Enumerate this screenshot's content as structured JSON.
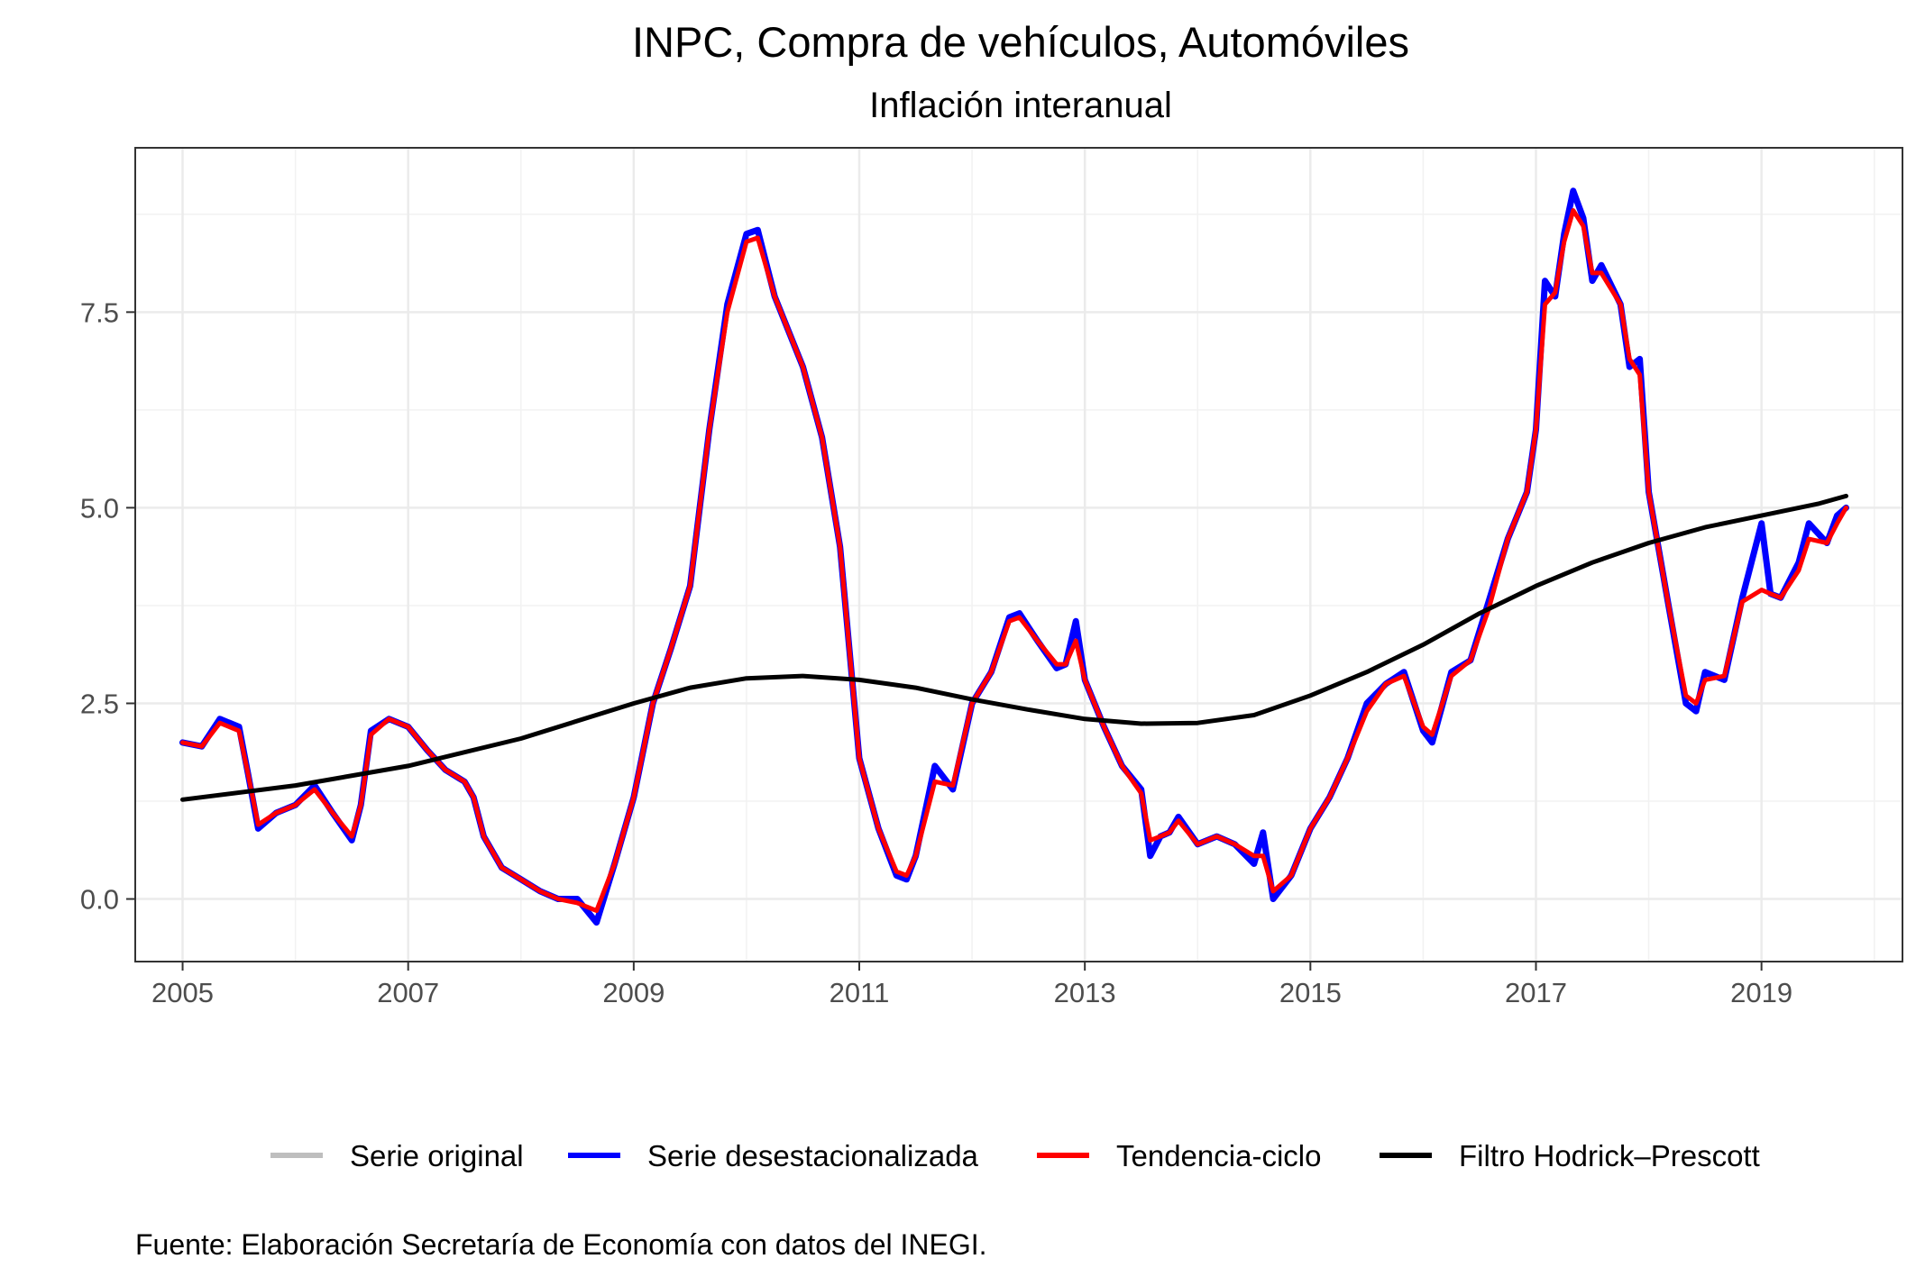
{
  "chart_data": {
    "type": "line",
    "title": "INPC, Compra de vehículos, Automóviles",
    "subtitle": "Inflación interanual",
    "caption": "Fuente: Elaboración Secretaría de Economía con datos del INEGI.",
    "xlabel": "",
    "ylabel": "",
    "xlim": [
      2004.58,
      2020.25
    ],
    "ylim": [
      -0.8,
      9.6
    ],
    "x_ticks": [
      2005,
      2007,
      2009,
      2011,
      2013,
      2015,
      2017,
      2019
    ],
    "x_tick_labels": [
      "2005",
      "2007",
      "2009",
      "2011",
      "2013",
      "2015",
      "2017",
      "2019"
    ],
    "y_ticks": [
      0,
      2.5,
      5,
      7.5
    ],
    "y_tick_labels": [
      "0.0",
      "2.5",
      "5.0",
      "7.5"
    ],
    "grid": true,
    "legend_position": "bottom",
    "series": [
      {
        "name": "Serie original",
        "color": "#bebebe",
        "points": []
      },
      {
        "name": "Serie desestacionalizada",
        "color": "#0000ff",
        "points": [
          [
            2005.0,
            2.0
          ],
          [
            2005.17,
            1.95
          ],
          [
            2005.33,
            2.3
          ],
          [
            2005.5,
            2.2
          ],
          [
            2005.58,
            1.6
          ],
          [
            2005.67,
            0.9
          ],
          [
            2005.83,
            1.1
          ],
          [
            2006.0,
            1.2
          ],
          [
            2006.17,
            1.45
          ],
          [
            2006.33,
            1.1
          ],
          [
            2006.5,
            0.75
          ],
          [
            2006.58,
            1.2
          ],
          [
            2006.67,
            2.15
          ],
          [
            2006.83,
            2.3
          ],
          [
            2007.0,
            2.2
          ],
          [
            2007.17,
            1.9
          ],
          [
            2007.33,
            1.65
          ],
          [
            2007.5,
            1.5
          ],
          [
            2007.58,
            1.3
          ],
          [
            2007.67,
            0.8
          ],
          [
            2007.83,
            0.4
          ],
          [
            2008.0,
            0.25
          ],
          [
            2008.17,
            0.1
          ],
          [
            2008.33,
            0.0
          ],
          [
            2008.5,
            0.0
          ],
          [
            2008.67,
            -0.3
          ],
          [
            2008.83,
            0.45
          ],
          [
            2009.0,
            1.3
          ],
          [
            2009.17,
            2.5
          ],
          [
            2009.33,
            3.2
          ],
          [
            2009.5,
            4.0
          ],
          [
            2009.67,
            6.0
          ],
          [
            2009.83,
            7.6
          ],
          [
            2010.0,
            8.5
          ],
          [
            2010.1,
            8.55
          ],
          [
            2010.25,
            7.7
          ],
          [
            2010.5,
            6.8
          ],
          [
            2010.67,
            5.9
          ],
          [
            2010.83,
            4.5
          ],
          [
            2011.0,
            1.8
          ],
          [
            2011.17,
            0.9
          ],
          [
            2011.33,
            0.3
          ],
          [
            2011.42,
            0.25
          ],
          [
            2011.5,
            0.55
          ],
          [
            2011.67,
            1.7
          ],
          [
            2011.83,
            1.4
          ],
          [
            2012.0,
            2.5
          ],
          [
            2012.17,
            2.9
          ],
          [
            2012.33,
            3.6
          ],
          [
            2012.42,
            3.65
          ],
          [
            2012.58,
            3.3
          ],
          [
            2012.75,
            2.95
          ],
          [
            2012.83,
            3.0
          ],
          [
            2012.92,
            3.55
          ],
          [
            2013.0,
            2.8
          ],
          [
            2013.17,
            2.2
          ],
          [
            2013.33,
            1.7
          ],
          [
            2013.5,
            1.4
          ],
          [
            2013.58,
            0.55
          ],
          [
            2013.67,
            0.8
          ],
          [
            2013.75,
            0.85
          ],
          [
            2013.83,
            1.05
          ],
          [
            2014.0,
            0.7
          ],
          [
            2014.17,
            0.8
          ],
          [
            2014.33,
            0.7
          ],
          [
            2014.5,
            0.45
          ],
          [
            2014.58,
            0.85
          ],
          [
            2014.67,
            0.0
          ],
          [
            2014.83,
            0.3
          ],
          [
            2015.0,
            0.9
          ],
          [
            2015.17,
            1.3
          ],
          [
            2015.33,
            1.8
          ],
          [
            2015.5,
            2.5
          ],
          [
            2015.67,
            2.75
          ],
          [
            2015.83,
            2.9
          ],
          [
            2016.0,
            2.15
          ],
          [
            2016.08,
            2.0
          ],
          [
            2016.25,
            2.9
          ],
          [
            2016.42,
            3.05
          ],
          [
            2016.58,
            3.8
          ],
          [
            2016.75,
            4.6
          ],
          [
            2016.92,
            5.2
          ],
          [
            2017.0,
            6.0
          ],
          [
            2017.08,
            7.9
          ],
          [
            2017.17,
            7.7
          ],
          [
            2017.25,
            8.5
          ],
          [
            2017.33,
            9.05
          ],
          [
            2017.42,
            8.7
          ],
          [
            2017.5,
            7.9
          ],
          [
            2017.58,
            8.1
          ],
          [
            2017.75,
            7.6
          ],
          [
            2017.83,
            6.8
          ],
          [
            2017.92,
            6.9
          ],
          [
            2018.0,
            5.2
          ],
          [
            2018.17,
            3.8
          ],
          [
            2018.33,
            2.5
          ],
          [
            2018.42,
            2.4
          ],
          [
            2018.5,
            2.9
          ],
          [
            2018.67,
            2.8
          ],
          [
            2018.83,
            3.85
          ],
          [
            2019.0,
            4.8
          ],
          [
            2019.08,
            3.9
          ],
          [
            2019.17,
            3.85
          ],
          [
            2019.33,
            4.3
          ],
          [
            2019.42,
            4.8
          ],
          [
            2019.58,
            4.55
          ],
          [
            2019.67,
            4.9
          ],
          [
            2019.75,
            5.0
          ]
        ]
      },
      {
        "name": "Tendencia-ciclo",
        "color": "#ff0000",
        "points": [
          [
            2005.0,
            2.0
          ],
          [
            2005.17,
            1.95
          ],
          [
            2005.33,
            2.25
          ],
          [
            2005.5,
            2.15
          ],
          [
            2005.58,
            1.6
          ],
          [
            2005.67,
            0.95
          ],
          [
            2005.83,
            1.1
          ],
          [
            2006.0,
            1.2
          ],
          [
            2006.17,
            1.4
          ],
          [
            2006.33,
            1.1
          ],
          [
            2006.5,
            0.8
          ],
          [
            2006.58,
            1.2
          ],
          [
            2006.67,
            2.1
          ],
          [
            2006.83,
            2.3
          ],
          [
            2007.0,
            2.2
          ],
          [
            2007.17,
            1.9
          ],
          [
            2007.33,
            1.65
          ],
          [
            2007.5,
            1.5
          ],
          [
            2007.58,
            1.3
          ],
          [
            2007.67,
            0.8
          ],
          [
            2007.83,
            0.4
          ],
          [
            2008.0,
            0.25
          ],
          [
            2008.17,
            0.1
          ],
          [
            2008.33,
            0.0
          ],
          [
            2008.5,
            -0.05
          ],
          [
            2008.67,
            -0.15
          ],
          [
            2008.83,
            0.45
          ],
          [
            2009.0,
            1.3
          ],
          [
            2009.17,
            2.5
          ],
          [
            2009.33,
            3.2
          ],
          [
            2009.5,
            4.0
          ],
          [
            2009.67,
            6.0
          ],
          [
            2009.83,
            7.5
          ],
          [
            2010.0,
            8.4
          ],
          [
            2010.1,
            8.45
          ],
          [
            2010.25,
            7.7
          ],
          [
            2010.5,
            6.8
          ],
          [
            2010.67,
            5.9
          ],
          [
            2010.83,
            4.5
          ],
          [
            2011.0,
            1.8
          ],
          [
            2011.17,
            0.9
          ],
          [
            2011.33,
            0.35
          ],
          [
            2011.42,
            0.3
          ],
          [
            2011.5,
            0.55
          ],
          [
            2011.67,
            1.5
          ],
          [
            2011.83,
            1.45
          ],
          [
            2012.0,
            2.5
          ],
          [
            2012.17,
            2.9
          ],
          [
            2012.33,
            3.55
          ],
          [
            2012.42,
            3.6
          ],
          [
            2012.58,
            3.3
          ],
          [
            2012.75,
            3.0
          ],
          [
            2012.83,
            3.0
          ],
          [
            2012.92,
            3.3
          ],
          [
            2013.0,
            2.8
          ],
          [
            2013.17,
            2.2
          ],
          [
            2013.33,
            1.7
          ],
          [
            2013.5,
            1.35
          ],
          [
            2013.58,
            0.75
          ],
          [
            2013.67,
            0.8
          ],
          [
            2013.75,
            0.85
          ],
          [
            2013.83,
            1.0
          ],
          [
            2014.0,
            0.7
          ],
          [
            2014.17,
            0.8
          ],
          [
            2014.33,
            0.7
          ],
          [
            2014.5,
            0.55
          ],
          [
            2014.58,
            0.55
          ],
          [
            2014.67,
            0.1
          ],
          [
            2014.83,
            0.3
          ],
          [
            2015.0,
            0.9
          ],
          [
            2015.17,
            1.3
          ],
          [
            2015.33,
            1.8
          ],
          [
            2015.5,
            2.4
          ],
          [
            2015.67,
            2.75
          ],
          [
            2015.83,
            2.85
          ],
          [
            2016.0,
            2.2
          ],
          [
            2016.08,
            2.1
          ],
          [
            2016.25,
            2.85
          ],
          [
            2016.42,
            3.05
          ],
          [
            2016.58,
            3.7
          ],
          [
            2016.75,
            4.6
          ],
          [
            2016.92,
            5.2
          ],
          [
            2017.0,
            6.0
          ],
          [
            2017.08,
            7.6
          ],
          [
            2017.17,
            7.75
          ],
          [
            2017.25,
            8.4
          ],
          [
            2017.33,
            8.8
          ],
          [
            2017.42,
            8.6
          ],
          [
            2017.5,
            8.0
          ],
          [
            2017.58,
            8.0
          ],
          [
            2017.75,
            7.6
          ],
          [
            2017.83,
            6.9
          ],
          [
            2017.92,
            6.7
          ],
          [
            2018.0,
            5.2
          ],
          [
            2018.17,
            3.8
          ],
          [
            2018.33,
            2.6
          ],
          [
            2018.42,
            2.5
          ],
          [
            2018.5,
            2.8
          ],
          [
            2018.67,
            2.85
          ],
          [
            2018.83,
            3.8
          ],
          [
            2019.0,
            3.95
          ],
          [
            2019.08,
            3.9
          ],
          [
            2019.17,
            3.85
          ],
          [
            2019.33,
            4.2
          ],
          [
            2019.42,
            4.6
          ],
          [
            2019.58,
            4.55
          ],
          [
            2019.67,
            4.8
          ],
          [
            2019.75,
            5.0
          ]
        ]
      },
      {
        "name": "Filtro Hodrick–Prescott",
        "color": "#000000",
        "points": [
          [
            2005.0,
            1.27
          ],
          [
            2006.0,
            1.45
          ],
          [
            2007.0,
            1.7
          ],
          [
            2008.0,
            2.05
          ],
          [
            2009.0,
            2.5
          ],
          [
            2009.5,
            2.7
          ],
          [
            2010.0,
            2.82
          ],
          [
            2010.5,
            2.85
          ],
          [
            2011.0,
            2.8
          ],
          [
            2011.5,
            2.7
          ],
          [
            2012.0,
            2.55
          ],
          [
            2012.5,
            2.42
          ],
          [
            2013.0,
            2.3
          ],
          [
            2013.5,
            2.24
          ],
          [
            2014.0,
            2.25
          ],
          [
            2014.5,
            2.35
          ],
          [
            2015.0,
            2.6
          ],
          [
            2015.5,
            2.9
          ],
          [
            2016.0,
            3.25
          ],
          [
            2016.5,
            3.65
          ],
          [
            2017.0,
            4.0
          ],
          [
            2017.5,
            4.3
          ],
          [
            2018.0,
            4.55
          ],
          [
            2018.5,
            4.75
          ],
          [
            2019.0,
            4.9
          ],
          [
            2019.5,
            5.05
          ],
          [
            2019.75,
            5.15
          ]
        ]
      }
    ]
  }
}
